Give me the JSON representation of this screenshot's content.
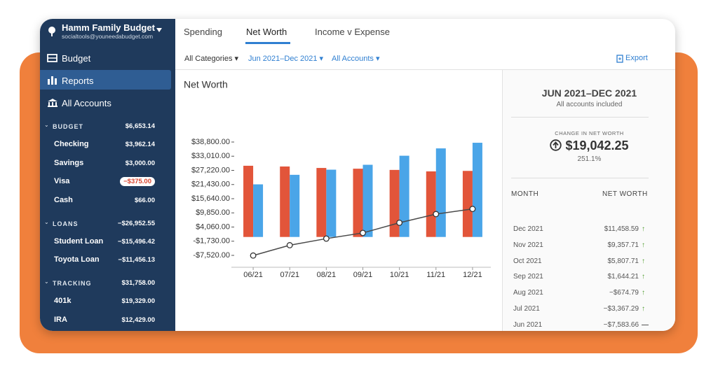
{
  "sidebar": {
    "budget_name": "Hamm Family Budget",
    "email": "socialtools@youneedabudget.com",
    "nav": [
      "Budget",
      "Reports",
      "All Accounts"
    ],
    "groups": [
      {
        "name": "BUDGET",
        "total": "$6,653.14",
        "accounts": [
          {
            "name": "Checking",
            "balance": "$3,962.14"
          },
          {
            "name": "Savings",
            "balance": "$3,000.00"
          },
          {
            "name": "Visa",
            "balance": "−$375.00"
          },
          {
            "name": "Cash",
            "balance": "$66.00"
          }
        ]
      },
      {
        "name": "LOANS",
        "total": "−$26,952.55",
        "accounts": [
          {
            "name": "Student Loan",
            "balance": "−$15,496.42"
          },
          {
            "name": "Toyota Loan",
            "balance": "−$11,456.13"
          }
        ]
      },
      {
        "name": "TRACKING",
        "total": "$31,758.00",
        "accounts": [
          {
            "name": "401k",
            "balance": "$19,329.00"
          },
          {
            "name": "IRA",
            "balance": "$12,429.00"
          }
        ]
      }
    ]
  },
  "tabs": [
    "Spending",
    "Net Worth",
    "Income v Expense"
  ],
  "filters": [
    "All Categories",
    "Jun 2021–Dec 2021",
    "All Accounts"
  ],
  "export": "Export",
  "chart_data": {
    "type": "bar",
    "title": "Net Worth",
    "categories": [
      "06/21",
      "07/21",
      "08/21",
      "09/21",
      "10/21",
      "11/21",
      "12/21"
    ],
    "series": [
      {
        "color": "#e2553a",
        "values": [
          29100,
          28800,
          28200,
          27900,
          27400,
          26800,
          27000
        ]
      },
      {
        "color": "#4aa5e8",
        "values": [
          21500,
          25400,
          27500,
          29500,
          33200,
          36200,
          38500
        ]
      },
      {
        "type": "line",
        "color": "#4a4a4a",
        "values": [
          -7583.66,
          -3367.29,
          -674.79,
          1644.21,
          5807.71,
          9357.71,
          11458.59
        ]
      }
    ],
    "ylim": [
      -7520,
      38800
    ],
    "yticks": [
      {
        "value": 38800,
        "label": "$38,800.00"
      },
      {
        "value": 33010,
        "label": "$33,010.00"
      },
      {
        "value": 27220,
        "label": "$27,220.00"
      },
      {
        "value": 21430,
        "label": "$21,430.00"
      },
      {
        "value": 15640,
        "label": "$15,640.00"
      },
      {
        "value": 9850,
        "label": "$9,850.00"
      },
      {
        "value": 4060,
        "label": "$4,060.00"
      },
      {
        "value": -1730,
        "label": "-$1,730.00"
      },
      {
        "value": -7520,
        "label": "-$7,520.00"
      }
    ]
  },
  "summary": {
    "period": "JUN 2021–DEC 2021",
    "note": "All accounts included",
    "change_label": "CHANGE IN NET WORTH",
    "change": "$19,042.25",
    "change_pct": "251.1%",
    "columns": [
      "MONTH",
      "NET WORTH"
    ],
    "rows": [
      [
        "Dec 2021",
        "$11,458.59"
      ],
      [
        "Nov 2021",
        "$9,357.71"
      ],
      [
        "Oct 2021",
        "$5,807.71"
      ],
      [
        "Sep 2021",
        "$1,644.21"
      ],
      [
        "Aug 2021",
        "−$674.79"
      ],
      [
        "Jul 2021",
        "−$3,367.29"
      ],
      [
        "Jun 2021",
        "−$7,583.66"
      ]
    ]
  }
}
